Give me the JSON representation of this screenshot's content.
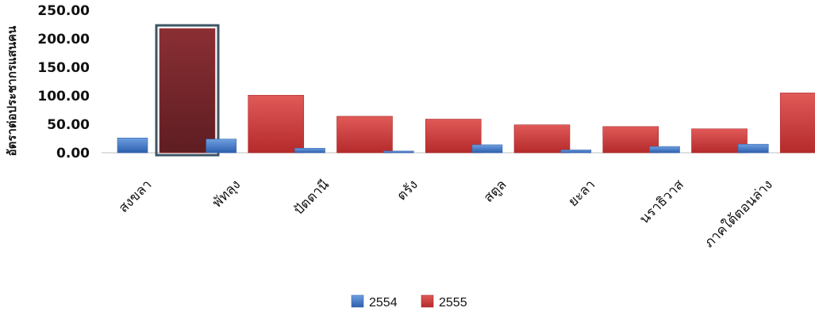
{
  "chart_data": {
    "type": "bar",
    "title": "",
    "xlabel": "",
    "ylabel": "อัตราต่อประชากรแสนคน",
    "ylim": [
      0,
      250
    ],
    "yticks": [
      "0.00",
      "50.00",
      "100.00",
      "150.00",
      "200.00",
      "250.00"
    ],
    "categories": [
      "สงขลา",
      "พัทลุง",
      "ปัตตานี",
      "ตรัง",
      "สตูล",
      "ยะลา",
      "นราธิวาส",
      "ภาคใต้ตอนล่าง"
    ],
    "series": [
      {
        "name": "2554",
        "color": "#3b73c7",
        "values": [
          26,
          24,
          8,
          3,
          14,
          5,
          11,
          15
        ]
      },
      {
        "name": "2555",
        "color": "#c8393a",
        "values": [
          218,
          101,
          64,
          59,
          49,
          46,
          42,
          105
        ]
      }
    ],
    "highlight": {
      "series": 1,
      "category": 0,
      "color": "#6e2328"
    },
    "legend": "bottom-center",
    "grid": false
  }
}
